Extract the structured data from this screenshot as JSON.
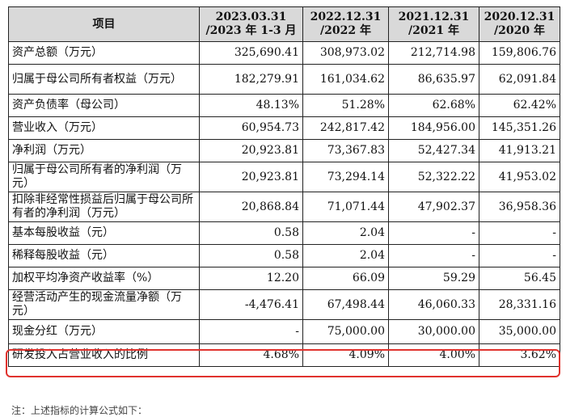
{
  "table": {
    "headers": [
      {
        "line1": "项目",
        "line2": ""
      },
      {
        "line1": "2023.03.31",
        "line2": "/2023 年 1-3 月"
      },
      {
        "line1": "2022.12.31",
        "line2": "/2022 年"
      },
      {
        "line1": "2021.12.31",
        "line2": "/2021 年"
      },
      {
        "line1": "2020.12.31",
        "line2": "/2020 年"
      }
    ],
    "rows": [
      {
        "label": "资产总额（万元）",
        "values": [
          "325,690.41",
          "308,973.02",
          "212,714.98",
          "159,806.76"
        ]
      },
      {
        "label": "归属于母公司所有者权益（万元）",
        "values": [
          "182,279.91",
          "161,034.62",
          "86,635.97",
          "62,091.84"
        ]
      },
      {
        "label": "资产负债率（母公司）",
        "values": [
          "48.13%",
          "51.28%",
          "62.68%",
          "62.42%"
        ]
      },
      {
        "label": "营业收入（万元）",
        "values": [
          "60,954.73",
          "242,817.42",
          "184,956.00",
          "145,351.26"
        ]
      },
      {
        "label": "净利润（万元）",
        "values": [
          "20,923.81",
          "73,367.83",
          "52,427.34",
          "41,913.21"
        ]
      },
      {
        "label": "归属于母公司所有者的净利润（万元）",
        "values": [
          "20,923.81",
          "73,294.14",
          "52,322.22",
          "41,953.02"
        ]
      },
      {
        "label": "扣除非经常性损益后归属于母公司所有者的净利润（万元）",
        "values": [
          "20,868.84",
          "71,071.44",
          "47,902.37",
          "36,958.36"
        ]
      },
      {
        "label": "基本每股收益（元）",
        "values": [
          "0.58",
          "2.04",
          "-",
          "-"
        ]
      },
      {
        "label": "稀释每股收益（元）",
        "values": [
          "0.58",
          "2.04",
          "-",
          "-"
        ]
      },
      {
        "label": "加权平均净资产收益率（%）",
        "values": [
          "12.20",
          "66.09",
          "59.29",
          "56.45"
        ]
      },
      {
        "label": "经营活动产生的现金流量净额（万元）",
        "values": [
          "-4,476.41",
          "67,498.44",
          "46,060.33",
          "28,331.16"
        ]
      },
      {
        "label": "现金分红（万元）",
        "values": [
          "-",
          "75,000.00",
          "30,000.00",
          "35,000.00"
        ]
      },
      {
        "label": "研发投入占营业收入的比例",
        "values": [
          "4.68%",
          "4.09%",
          "4.00%",
          "3.62%"
        ]
      }
    ]
  },
  "footnote": "注：上述指标的计算公式如下："
}
